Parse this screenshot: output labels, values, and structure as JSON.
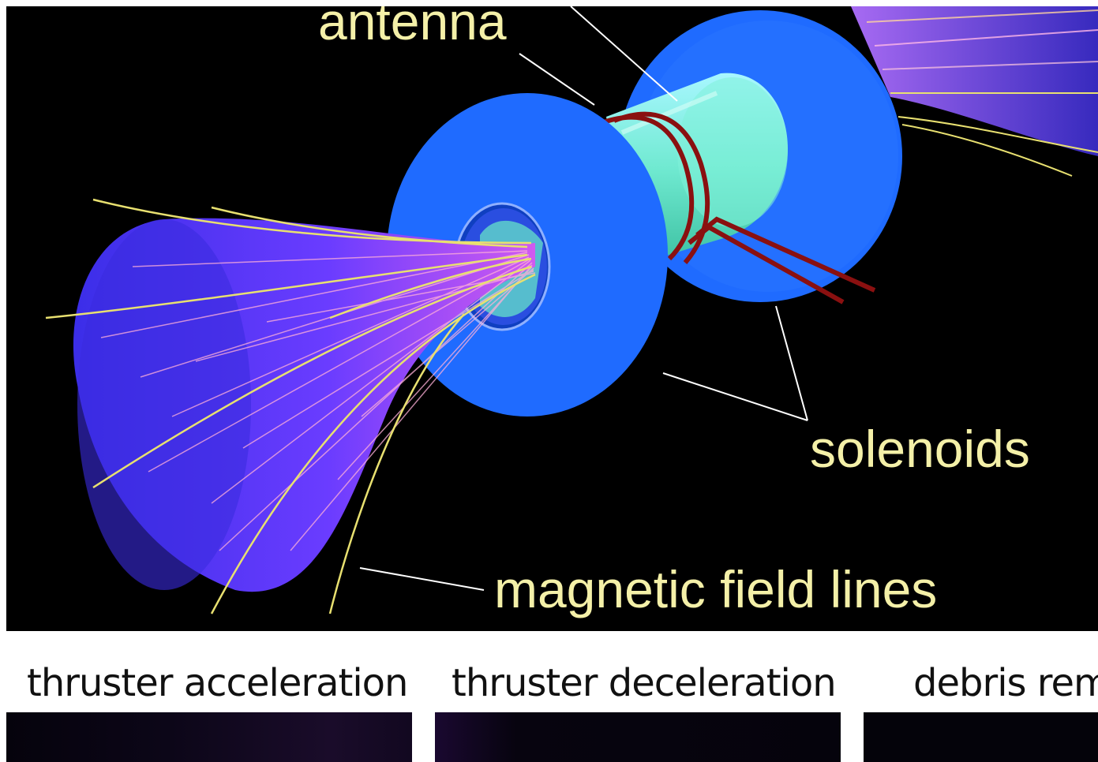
{
  "diagram": {
    "labels": {
      "antenna": "antenna",
      "solenoids": "solenoids",
      "magnetic_field_lines": "magnetic field lines"
    },
    "colors": {
      "background": "#000000",
      "solenoid": "#1f6bff",
      "plume": "#6a3cff",
      "antenna_cylinder": "#7ff0d8",
      "antenna_wire": "#8a1010",
      "field_line": "#e8e070",
      "label_text": "#f4f0a8"
    }
  },
  "bottom_panels": [
    {
      "caption": "thruster acceleration"
    },
    {
      "caption": "thruster deceleration"
    },
    {
      "caption": "debris rem"
    }
  ]
}
